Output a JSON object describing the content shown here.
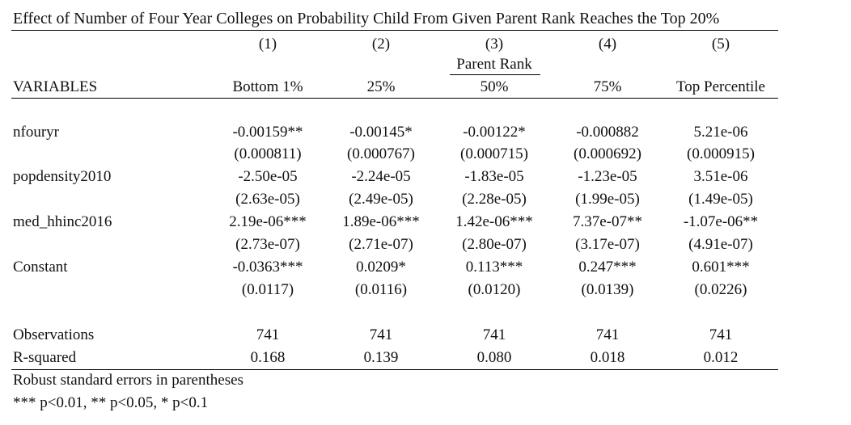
{
  "title": "Effect of Number of Four Year Colleges on Probability Child From Given Parent Rank Reaches the Top 20%",
  "columns": {
    "numbers": [
      "(1)",
      "(2)",
      "(3)",
      "(4)",
      "(5)"
    ],
    "group_label": "Parent Rank",
    "labels": [
      "Bottom 1%",
      "25%",
      "50%",
      "75%",
      "Top Percentile"
    ],
    "variables_header": "VARIABLES"
  },
  "rows": [
    {
      "label": "nfouryr",
      "coef": [
        "-0.00159**",
        "-0.00145*",
        "-0.00122*",
        "-0.000882",
        "5.21e-06"
      ],
      "se": [
        "(0.000811)",
        "(0.000767)",
        "(0.000715)",
        "(0.000692)",
        "(0.000915)"
      ]
    },
    {
      "label": "popdensity2010",
      "coef": [
        "-2.50e-05",
        "-2.24e-05",
        "-1.83e-05",
        "-1.23e-05",
        "3.51e-06"
      ],
      "se": [
        "(2.63e-05)",
        "(2.49e-05)",
        "(2.28e-05)",
        "(1.99e-05)",
        "(1.49e-05)"
      ]
    },
    {
      "label": "med_hhinc2016",
      "coef": [
        "2.19e-06***",
        "1.89e-06***",
        "1.42e-06***",
        "7.37e-07**",
        "-1.07e-06**"
      ],
      "se": [
        "(2.73e-07)",
        "(2.71e-07)",
        "(2.80e-07)",
        "(3.17e-07)",
        "(4.91e-07)"
      ]
    },
    {
      "label": "Constant",
      "coef": [
        "-0.0363***",
        "0.0209*",
        "0.113***",
        "0.247***",
        "0.601***"
      ],
      "se": [
        "(0.0117)",
        "(0.0116)",
        "(0.0120)",
        "(0.0139)",
        "(0.0226)"
      ]
    }
  ],
  "stats": [
    {
      "label": "Observations",
      "values": [
        "741",
        "741",
        "741",
        "741",
        "741"
      ]
    },
    {
      "label": "R-squared",
      "values": [
        "0.168",
        "0.139",
        "0.080",
        "0.018",
        "0.012"
      ]
    }
  ],
  "footnotes": {
    "line1": "Robust standard errors in parentheses",
    "line2": "*** p<0.01, ** p<0.05, * p<0.1"
  }
}
